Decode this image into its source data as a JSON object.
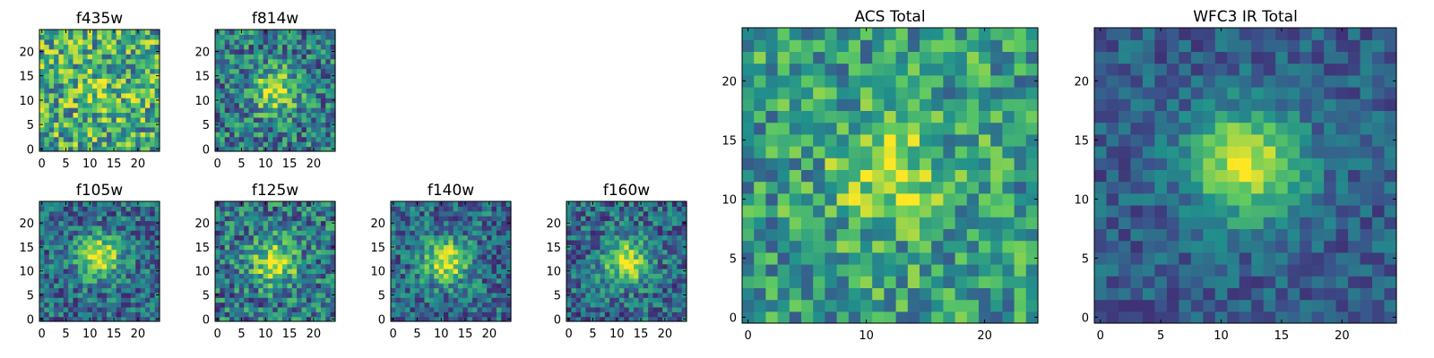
{
  "chart_data": [
    {
      "type": "heatmap",
      "title": "f435w",
      "peak": [
        12,
        12
      ],
      "amp": 0.15,
      "noise": 0.36,
      "base": 0.62,
      "seed": 11,
      "cmap": "viridis",
      "x_ticks": [
        0,
        5,
        10,
        15,
        20
      ],
      "y_ticks": [
        0,
        5,
        10,
        15,
        20
      ],
      "xlim": [
        0,
        24
      ],
      "ylim": [
        0,
        24
      ]
    },
    {
      "type": "heatmap",
      "title": "f814w",
      "peak": [
        12,
        12
      ],
      "amp": 0.5,
      "noise": 0.3,
      "base": 0.42,
      "seed": 23,
      "cmap": "viridis",
      "x_ticks": [
        0,
        5,
        10,
        15,
        20
      ],
      "y_ticks": [
        0,
        5,
        10,
        15,
        20
      ],
      "xlim": [
        0,
        24
      ],
      "ylim": [
        0,
        24
      ]
    },
    {
      "type": "heatmap",
      "title": "f105w",
      "peak": [
        12,
        13
      ],
      "amp": 0.6,
      "noise": 0.25,
      "base": 0.35,
      "seed": 37,
      "cmap": "viridis",
      "x_ticks": [
        0,
        5,
        10,
        15,
        20
      ],
      "y_ticks": [
        0,
        5,
        10,
        15,
        20
      ],
      "xlim": [
        0,
        24
      ],
      "ylim": [
        0,
        24
      ]
    },
    {
      "type": "heatmap",
      "title": "f125w",
      "peak": [
        12,
        12
      ],
      "amp": 0.55,
      "noise": 0.3,
      "base": 0.4,
      "seed": 41,
      "cmap": "viridis",
      "x_ticks": [
        0,
        5,
        10,
        15,
        20
      ],
      "y_ticks": [
        0,
        5,
        10,
        15,
        20
      ],
      "xlim": [
        0,
        24
      ],
      "ylim": [
        0,
        24
      ]
    },
    {
      "type": "heatmap",
      "title": "f140w",
      "peak": [
        11,
        12
      ],
      "amp": 0.6,
      "noise": 0.25,
      "base": 0.35,
      "seed": 53,
      "cmap": "viridis",
      "x_ticks": [
        0,
        5,
        10,
        15,
        20
      ],
      "y_ticks": [
        0,
        5,
        10,
        15,
        20
      ],
      "xlim": [
        0,
        24
      ],
      "ylim": [
        0,
        24
      ]
    },
    {
      "type": "heatmap",
      "title": "f160w",
      "peak": [
        12,
        12
      ],
      "amp": 0.6,
      "noise": 0.25,
      "base": 0.35,
      "seed": 67,
      "cmap": "viridis",
      "x_ticks": [
        0,
        5,
        10,
        15,
        20
      ],
      "y_ticks": [
        0,
        5,
        10,
        15,
        20
      ],
      "xlim": [
        0,
        24
      ],
      "ylim": [
        0,
        24
      ]
    },
    {
      "type": "heatmap",
      "title": "ACS Total",
      "peak": [
        12,
        12
      ],
      "amp": 0.35,
      "noise": 0.28,
      "base": 0.55,
      "seed": 79,
      "cmap": "viridis",
      "x_ticks": [
        0,
        10,
        20
      ],
      "y_ticks": [
        0,
        5,
        10,
        15,
        20
      ],
      "xlim": [
        0,
        24
      ],
      "ylim": [
        0,
        24
      ]
    },
    {
      "type": "heatmap",
      "title": "WFC3 IR Total",
      "peak": [
        12,
        13
      ],
      "amp": 0.65,
      "noise": 0.15,
      "base": 0.3,
      "seed": 97,
      "cmap": "viridis",
      "x_ticks": [
        0,
        5,
        10,
        15,
        20
      ],
      "y_ticks": [
        0,
        5,
        10,
        15,
        20
      ],
      "xlim": [
        0,
        24
      ],
      "ylim": [
        0,
        24
      ]
    }
  ]
}
